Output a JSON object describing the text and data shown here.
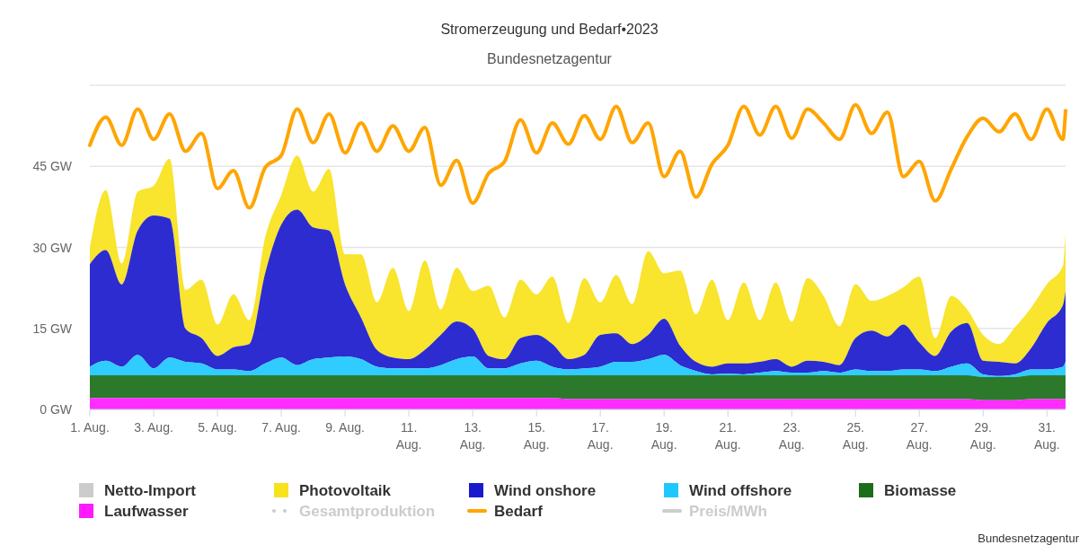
{
  "chart_data": {
    "type": "area",
    "stacked": true,
    "title": "Stromerzeugung und Bedarf•2023",
    "subtitle": "Bundesnetzagentur",
    "annotations": [
      "Bundesnetzagentur"
    ],
    "x": [
      "2023-08-01T00:00",
      "2023-08-01T12:00",
      "2023-08-02T00:00",
      "2023-08-02T12:00",
      "2023-08-03T00:00",
      "2023-08-03T12:00",
      "2023-08-04T00:00",
      "2023-08-04T12:00",
      "2023-08-05T00:00",
      "2023-08-05T12:00",
      "2023-08-06T00:00",
      "2023-08-06T12:00",
      "2023-08-07T00:00",
      "2023-08-07T12:00",
      "2023-08-08T00:00",
      "2023-08-08T12:00",
      "2023-08-09T00:00",
      "2023-08-09T12:00",
      "2023-08-10T00:00",
      "2023-08-10T12:00",
      "2023-08-11T00:00",
      "2023-08-11T12:00",
      "2023-08-12T00:00",
      "2023-08-12T12:00",
      "2023-08-13T00:00",
      "2023-08-13T12:00",
      "2023-08-14T00:00",
      "2023-08-14T12:00",
      "2023-08-15T00:00",
      "2023-08-15T12:00",
      "2023-08-16T00:00",
      "2023-08-16T12:00",
      "2023-08-17T00:00",
      "2023-08-17T12:00",
      "2023-08-18T00:00",
      "2023-08-18T12:00",
      "2023-08-19T00:00",
      "2023-08-19T12:00",
      "2023-08-20T00:00",
      "2023-08-20T12:00",
      "2023-08-21T00:00",
      "2023-08-21T12:00",
      "2023-08-22T00:00",
      "2023-08-22T12:00",
      "2023-08-23T00:00",
      "2023-08-23T12:00",
      "2023-08-24T00:00",
      "2023-08-24T12:00",
      "2023-08-25T00:00",
      "2023-08-25T12:00",
      "2023-08-26T00:00",
      "2023-08-26T12:00",
      "2023-08-27T00:00",
      "2023-08-27T12:00",
      "2023-08-28T00:00",
      "2023-08-28T12:00",
      "2023-08-29T00:00",
      "2023-08-29T12:00",
      "2023-08-30T00:00",
      "2023-08-30T12:00",
      "2023-08-31T00:00",
      "2023-08-31T12:00",
      "2023-08-31T14:00"
    ],
    "series": [
      {
        "name": "Netto-Import",
        "color": "#cccccc",
        "values": [
          null,
          null,
          null,
          null,
          null,
          null,
          null,
          null,
          null,
          null,
          null,
          null,
          null,
          null,
          null,
          null,
          null,
          null,
          null,
          null,
          null,
          null,
          null,
          null,
          null,
          null,
          null,
          null,
          null,
          null,
          null,
          null,
          null,
          null,
          null,
          null,
          null,
          null,
          null,
          null,
          null,
          null,
          null,
          null,
          null,
          null,
          null,
          null,
          null,
          null,
          null,
          null,
          null,
          null,
          null,
          null,
          null,
          null,
          null,
          null,
          null,
          null,
          null
        ]
      },
      {
        "name": "Photovoltaik",
        "color": "#f8e21c",
        "values": [
          3.1,
          11.1,
          3.9,
          7.2,
          5.5,
          11.1,
          7.2,
          10.8,
          5.8,
          9.8,
          4.4,
          6.7,
          5.5,
          10.0,
          6.6,
          11.4,
          5.6,
          11.7,
          8.8,
          16.6,
          8.9,
          16.6,
          4.7,
          9.9,
          7.0,
          13.0,
          7.7,
          10.8,
          7.5,
          12.5,
          6.7,
          14.2,
          6.0,
          10.8,
          7.4,
          15.5,
          8.4,
          13.9,
          8.8,
          16.1,
          8.0,
          15.0,
          7.7,
          14.2,
          8.3,
          15.3,
          12.2,
          7.2,
          10.0,
          5.5,
          7.5,
          6.9,
          12.2,
          3.3,
          6.6,
          2.5,
          4.8,
          3.3,
          6.7,
          7.5,
          7.2,
          7.2,
          10.8
        ]
      },
      {
        "name": "Wind onshore",
        "color": "#1a1acc",
        "values": [
          19.0,
          20.5,
          15.2,
          23.0,
          28.3,
          25.7,
          6.1,
          4.7,
          2.5,
          4.1,
          5.0,
          16.8,
          24.6,
          28.8,
          24.4,
          23.5,
          13.3,
          7.7,
          3.1,
          2.0,
          1.7,
          3.4,
          5.6,
          7.0,
          5.1,
          2.3,
          1.7,
          4.7,
          4.8,
          4.2,
          1.9,
          2.5,
          5.9,
          5.3,
          3.3,
          4.5,
          6.7,
          3.6,
          1.7,
          1.4,
          1.9,
          2.0,
          2.0,
          2.2,
          1.1,
          2.2,
          1.7,
          1.4,
          5.8,
          7.5,
          6.4,
          8.3,
          5.0,
          2.8,
          6.5,
          7.5,
          2.5,
          2.6,
          2.0,
          3.9,
          8.6,
          11.4,
          13.0
        ]
      },
      {
        "name": "Wind offshore",
        "color": "#1ec8ff",
        "values": [
          1.6,
          2.7,
          1.6,
          3.8,
          1.3,
          3.3,
          2.5,
          2.2,
          1.1,
          1.1,
          0.8,
          2.2,
          3.3,
          1.9,
          3.0,
          3.3,
          3.5,
          3.0,
          1.6,
          1.3,
          1.3,
          1.3,
          1.9,
          3.0,
          3.5,
          1.3,
          1.3,
          2.2,
          2.7,
          1.6,
          1.1,
          1.3,
          1.6,
          2.5,
          2.5,
          3.0,
          3.8,
          1.9,
          0.8,
          0.2,
          0.3,
          0.2,
          0.5,
          0.8,
          0.5,
          0.5,
          0.8,
          0.5,
          1.1,
          0.8,
          0.8,
          1.1,
          1.1,
          0.8,
          1.6,
          2.2,
          0.5,
          0.2,
          0.5,
          1.1,
          1.1,
          1.6,
          2.5
        ]
      },
      {
        "name": "Biomasse",
        "color": "#1a6e1a",
        "values": [
          4.2,
          4.2,
          4.2,
          4.2,
          4.2,
          4.2,
          4.2,
          4.2,
          4.2,
          4.2,
          4.2,
          4.2,
          4.2,
          4.2,
          4.2,
          4.2,
          4.2,
          4.2,
          4.2,
          4.2,
          4.2,
          4.2,
          4.2,
          4.2,
          4.2,
          4.2,
          4.2,
          4.2,
          4.2,
          4.2,
          4.4,
          4.4,
          4.4,
          4.4,
          4.4,
          4.4,
          4.4,
          4.4,
          4.4,
          4.4,
          4.4,
          4.4,
          4.4,
          4.4,
          4.4,
          4.4,
          4.4,
          4.4,
          4.4,
          4.4,
          4.4,
          4.4,
          4.4,
          4.4,
          4.4,
          4.4,
          4.3,
          4.3,
          4.3,
          4.4,
          4.4,
          4.4,
          4.4
        ]
      },
      {
        "name": "Laufwasser",
        "color": "#ff1aff",
        "values": [
          2.1,
          2.1,
          2.1,
          2.1,
          2.1,
          2.1,
          2.1,
          2.1,
          2.1,
          2.1,
          2.1,
          2.1,
          2.1,
          2.1,
          2.1,
          2.1,
          2.1,
          2.1,
          2.1,
          2.1,
          2.1,
          2.1,
          2.1,
          2.1,
          2.1,
          2.1,
          2.1,
          2.1,
          2.1,
          2.1,
          1.9,
          1.9,
          1.9,
          1.9,
          1.9,
          1.9,
          1.9,
          1.9,
          1.9,
          1.9,
          1.9,
          1.9,
          1.9,
          1.9,
          1.9,
          1.9,
          1.9,
          1.9,
          1.9,
          1.9,
          1.9,
          1.9,
          1.9,
          1.9,
          1.9,
          1.9,
          1.7,
          1.7,
          1.7,
          1.9,
          1.9,
          1.9,
          1.9
        ]
      },
      {
        "name": "Gesamtproduktion",
        "type": "line",
        "line_style": "dotted",
        "color": "#cccccc",
        "values": [
          null,
          null,
          null,
          null,
          null,
          null,
          null,
          null,
          null,
          null,
          null,
          null,
          null,
          null,
          null,
          null,
          null,
          null,
          null,
          null,
          null,
          null,
          null,
          null,
          null,
          null,
          null,
          null,
          null,
          null,
          null,
          null,
          null,
          null,
          null,
          null,
          null,
          null,
          null,
          null,
          null,
          null,
          null,
          null,
          null,
          null,
          null,
          null,
          null,
          null,
          null,
          null,
          null,
          null,
          null,
          null,
          null,
          null,
          null,
          null,
          null,
          null,
          null
        ]
      },
      {
        "name": "Bedarf",
        "type": "line",
        "line_style": "solid",
        "color": "#ffa500",
        "values": [
          48.9,
          54.1,
          48.9,
          55.6,
          50.0,
          54.7,
          47.8,
          51.1,
          40.9,
          44.2,
          37.3,
          44.8,
          47.0,
          55.6,
          49.4,
          54.7,
          47.5,
          53.0,
          47.8,
          52.5,
          47.8,
          52.2,
          41.5,
          46.1,
          38.2,
          43.7,
          45.9,
          53.6,
          47.5,
          53.0,
          49.1,
          54.4,
          50.0,
          56.1,
          49.4,
          53.0,
          43.1,
          47.8,
          39.3,
          45.4,
          48.9,
          56.1,
          50.8,
          56.1,
          50.2,
          55.6,
          53.0,
          50.0,
          56.4,
          51.1,
          55.0,
          43.1,
          45.9,
          38.6,
          44.5,
          50.5,
          53.9,
          51.4,
          54.7,
          50.0,
          55.6,
          50.0,
          55.3
        ]
      },
      {
        "name": "Preis/MWh",
        "type": "line",
        "line_style": "dashed",
        "color": "#cccccc",
        "values": [
          null,
          null,
          null,
          null,
          null,
          null,
          null,
          null,
          null,
          null,
          null,
          null,
          null,
          null,
          null,
          null,
          null,
          null,
          null,
          null,
          null,
          null,
          null,
          null,
          null,
          null,
          null,
          null,
          null,
          null,
          null,
          null,
          null,
          null,
          null,
          null,
          null,
          null,
          null,
          null,
          null,
          null,
          null,
          null,
          null,
          null,
          null,
          null,
          null,
          null,
          null,
          null,
          null,
          null,
          null,
          null,
          null,
          null,
          null,
          null,
          null,
          null,
          null
        ]
      }
    ],
    "xlim": [
      "2023-08-01T00:00",
      "2023-08-31T14:00"
    ],
    "xticks": [
      {
        "value": "2023-08-01",
        "label": "1. Aug."
      },
      {
        "value": "2023-08-03",
        "label": "3. Aug."
      },
      {
        "value": "2023-08-05",
        "label": "5. Aug."
      },
      {
        "value": "2023-08-07",
        "label": "7. Aug."
      },
      {
        "value": "2023-08-09",
        "label": "9. Aug."
      },
      {
        "value": "2023-08-11",
        "label": "11. Aug."
      },
      {
        "value": "2023-08-13",
        "label": "13. Aug."
      },
      {
        "value": "2023-08-15",
        "label": "15. Aug."
      },
      {
        "value": "2023-08-17",
        "label": "17. Aug."
      },
      {
        "value": "2023-08-19",
        "label": "19. Aug."
      },
      {
        "value": "2023-08-21",
        "label": "21. Aug."
      },
      {
        "value": "2023-08-23",
        "label": "23. Aug."
      },
      {
        "value": "2023-08-25",
        "label": "25. Aug."
      },
      {
        "value": "2023-08-27",
        "label": "27. Aug."
      },
      {
        "value": "2023-08-29",
        "label": "29. Aug."
      },
      {
        "value": "2023-08-31",
        "label": "31. Aug."
      }
    ],
    "ylim": [
      0,
      60
    ],
    "yticks": [
      {
        "value": 0,
        "label": "0 GW"
      },
      {
        "value": 15,
        "label": "15 GW"
      },
      {
        "value": 30,
        "label": "30 GW"
      },
      {
        "value": 45,
        "label": "45 GW"
      },
      {
        "value": 60,
        "label": null
      }
    ],
    "grid": "y",
    "legend": "bottom"
  }
}
